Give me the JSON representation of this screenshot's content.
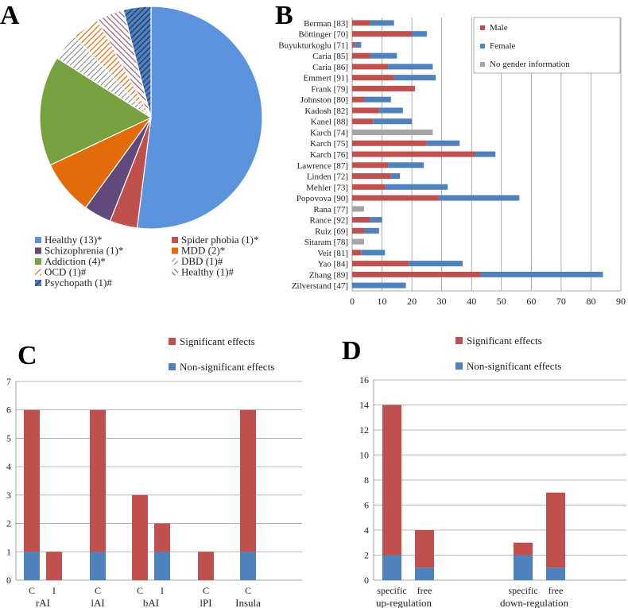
{
  "colors": {
    "red": "#C0504D",
    "blue": "#4F81BD",
    "gray": "#A5A5A5",
    "green": "#77A03F",
    "orange": "#E36C0A",
    "purple": "#604A7B",
    "navy": "#1F3864",
    "pie_blue": "#5B93DC"
  },
  "panels": {
    "a": "A",
    "b": "B",
    "c": "C",
    "d": "D"
  },
  "chart_data": [
    {
      "panel": "A",
      "type": "pie",
      "slices": [
        {
          "label": "Healthy (13)*",
          "value": 13,
          "color": "#5B93DC",
          "pattern": "solid"
        },
        {
          "label": "Spider phobia (1)*",
          "value": 1,
          "color": "#C0504D",
          "pattern": "solid"
        },
        {
          "label": "Schizophrenia (1)*",
          "value": 1,
          "color": "#604A7B",
          "pattern": "solid"
        },
        {
          "label": "MDD (2)*",
          "value": 2,
          "color": "#E36C0A",
          "pattern": "solid"
        },
        {
          "label": "Addiction (4)*",
          "value": 4,
          "color": "#77A03F",
          "pattern": "solid"
        },
        {
          "label": "DBD (1)#",
          "value": 1,
          "color": "#7F7F7F",
          "pattern": "hatch"
        },
        {
          "label": "OCD (1)#",
          "value": 1,
          "color": "#E36C0A",
          "pattern": "hatch"
        },
        {
          "label": "Healthy (1)#",
          "value": 1,
          "color": "#9B5C76",
          "pattern": "hatch"
        },
        {
          "label": "Psychopath (1)#",
          "value": 1,
          "color": "#1F3864",
          "pattern": "hatch"
        }
      ]
    },
    {
      "panel": "B",
      "type": "bar",
      "orientation": "horizontal",
      "stacked": true,
      "categories": [
        "Berman [83]",
        "Böttinger [70]",
        "Buyukturkoglu [71]",
        "Caria [85]",
        "Caria [86]",
        "Emmert [91]",
        "Frank [79]",
        "Johnston [80]",
        "Kadosh [82]",
        "Kanel [88]",
        "Karch [74]",
        "Karch [75]",
        "Karch [76]",
        "Lawrence [87]",
        "Linden [72]",
        "Mehler [73]",
        "Popovova [90]",
        "Rana [77]",
        "Rance [92]",
        "Ruiz [69]",
        "Sitaram [78]",
        "Veit [81]",
        "Yao [84]",
        "Zhang [89]",
        "Zilverstand [47]"
      ],
      "series": [
        {
          "name": "Male",
          "color": "#C0504D",
          "values": [
            6,
            20,
            1,
            6,
            12,
            14,
            21,
            4,
            9,
            7,
            0,
            25,
            41,
            12,
            13,
            11,
            29,
            0,
            6,
            4,
            0,
            3,
            19,
            43,
            0
          ]
        },
        {
          "name": "Female",
          "color": "#4F81BD",
          "values": [
            8,
            5,
            2,
            9,
            15,
            14,
            0,
            9,
            8,
            13,
            0,
            11,
            7,
            12,
            3,
            21,
            27,
            0,
            4,
            5,
            0,
            8,
            18,
            41,
            18
          ]
        },
        {
          "name": "No gender information",
          "color": "#A5A5A5",
          "values": [
            0,
            0,
            0,
            0,
            0,
            0,
            0,
            0,
            0,
            0,
            27,
            0,
            0,
            0,
            0,
            0,
            0,
            4,
            0,
            0,
            4,
            0,
            0,
            0,
            0
          ]
        }
      ],
      "xlim": [
        0,
        90
      ],
      "xticks": [
        "0",
        "10",
        "20",
        "30",
        "40",
        "50",
        "60",
        "70",
        "80",
        "90"
      ]
    },
    {
      "panel": "C",
      "type": "bar",
      "stacked": true,
      "groups": [
        {
          "label": "rAI",
          "bars": [
            {
              "label": "C",
              "sig": 5,
              "nonsig": 1
            },
            {
              "label": "I",
              "sig": 1,
              "nonsig": 0
            }
          ]
        },
        {
          "label": "lAI",
          "bars": [
            {
              "label": "C",
              "sig": 5,
              "nonsig": 1
            }
          ]
        },
        {
          "label": "bAI",
          "bars": [
            {
              "label": "C",
              "sig": 3,
              "nonsig": 0
            },
            {
              "label": "I",
              "sig": 1,
              "nonsig": 1
            }
          ]
        },
        {
          "label": "lPI",
          "bars": [
            {
              "label": "C",
              "sig": 1,
              "nonsig": 0
            }
          ]
        },
        {
          "label": "Insula",
          "bars": [
            {
              "label": "C",
              "sig": 5,
              "nonsig": 1
            }
          ]
        }
      ],
      "legend": [
        "Significant effects",
        "Non-significant effects"
      ],
      "ylim": [
        0,
        7
      ],
      "yticks": [
        "0",
        "1",
        "2",
        "3",
        "4",
        "5",
        "6",
        "7"
      ]
    },
    {
      "panel": "D",
      "type": "bar",
      "stacked": true,
      "groups": [
        {
          "label": "up-regulation",
          "bars": [
            {
              "label": "specific",
              "sig": 12,
              "nonsig": 2
            },
            {
              "label": "free",
              "sig": 3,
              "nonsig": 1
            }
          ]
        },
        {
          "label": "down-regulation",
          "bars": [
            {
              "label": "specific",
              "sig": 1,
              "nonsig": 2
            },
            {
              "label": "free",
              "sig": 6,
              "nonsig": 1
            }
          ]
        }
      ],
      "legend": [
        "Significant effects",
        "Non-significant effects"
      ],
      "ylim": [
        0,
        16
      ],
      "yticks": [
        "0",
        "2",
        "4",
        "6",
        "8",
        "10",
        "12",
        "14",
        "16"
      ]
    }
  ]
}
